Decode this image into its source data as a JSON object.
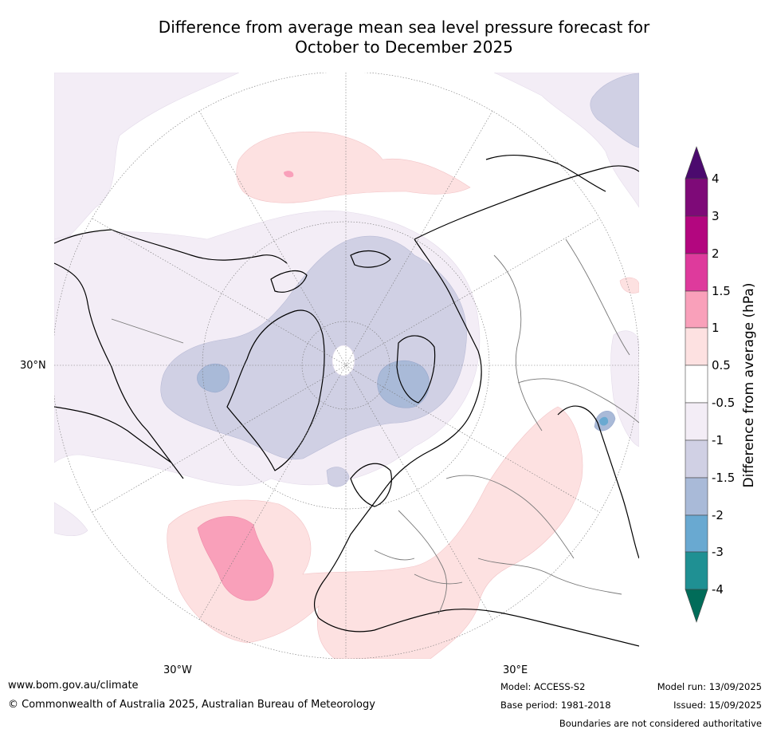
{
  "title_line1": "Difference from average mean sea level pressure forecast for",
  "title_line2": "October to December 2025",
  "graticule_labels": {
    "lat_30n": "30°N",
    "lon_30w": "30°W",
    "lon_30e": "30°E"
  },
  "colorbar": {
    "title": "Difference from average (hPa)",
    "ticks": [
      "4",
      "3",
      "2",
      "1.5",
      "1",
      "0.5",
      "-0.5",
      "-1",
      "-1.5",
      "-2",
      "-3",
      "-4"
    ],
    "colors": {
      "above_4": "#4b0a6e",
      "3_to_4": "#7e0a78",
      "2_to_3": "#b3067f",
      "1.5_to_2": "#de3a9c",
      "1_to_1.5": "#f9a0ba",
      "0.5_to_1": "#fde1e1",
      "neutral": "#ffffff",
      "-1_to_-0.5": "#f3edf6",
      "-1.5_to_-1": "#d0d0e4",
      "-2_to_-1.5": "#a9bad8",
      "-3_to_-2": "#69a9d1",
      "-4_to_-3": "#1f9093",
      "below_-4": "#016c59"
    }
  },
  "footer": {
    "website": "www.bom.gov.au/climate",
    "copyright": "© Commonwealth of Australia 2025, Australian Bureau of Meteorology",
    "model": "Model: ACCESS-S2",
    "base_period": "Base period: 1981-2018",
    "model_run": "Model run: 13/09/2025",
    "issued": "Issued: 15/09/2025",
    "disclaimer": "Boundaries are not considered authoritative"
  }
}
